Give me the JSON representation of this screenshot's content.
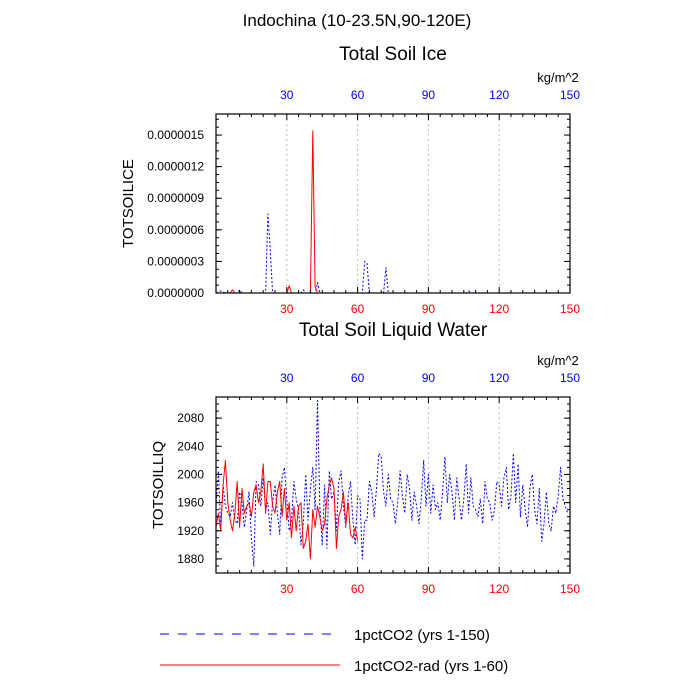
{
  "figure": {
    "title": "Indochina (10-23.5N,90-120E)",
    "legend": [
      {
        "label": "1pctCO2 (yrs 1-150)",
        "color": "#0000ff",
        "dash": "dashed"
      },
      {
        "label": "1pctCO2-rad (yrs 1-60)",
        "color": "#ff0000",
        "dash": "solid"
      }
    ]
  },
  "chart_data": [
    {
      "type": "line",
      "title": "Total Soil Ice",
      "ylabel": "TOTSOILICE",
      "units": "kg/m^2",
      "xlim": [
        0,
        150
      ],
      "ylim": [
        0,
        1.7e-06
      ],
      "grid": "vertical-dotted",
      "x_ticks": [
        30,
        60,
        90,
        120,
        150
      ],
      "y_ticks": [
        "0.0000000",
        "0.0000003",
        "0.0000006",
        "0.0000009",
        "0.0000012",
        "0.0000015"
      ],
      "y_tick_values": [
        0,
        3e-07,
        6e-07,
        9e-07,
        1.2e-06,
        1.5e-06
      ],
      "series": [
        {
          "name": "1pctCO2 (yrs 1-150)",
          "color": "#0000ff",
          "style": "dashed",
          "points": [
            [
              0,
              0
            ],
            [
              2,
              2e-08
            ],
            [
              4,
              0
            ],
            [
              9,
              0
            ],
            [
              10,
              3e-08
            ],
            [
              11,
              0
            ],
            [
              21,
              0
            ],
            [
              22,
              7.5e-07
            ],
            [
              23,
              4e-07
            ],
            [
              24,
              0
            ],
            [
              36,
              0
            ],
            [
              37,
              3e-08
            ],
            [
              38,
              0
            ],
            [
              42,
              0
            ],
            [
              43,
              1e-07
            ],
            [
              44,
              0
            ],
            [
              62,
              0
            ],
            [
              63,
              3e-07
            ],
            [
              64,
              2.8e-07
            ],
            [
              65,
              0
            ],
            [
              71,
              0
            ],
            [
              72,
              2.4e-07
            ],
            [
              73,
              0
            ],
            [
              106,
              0
            ],
            [
              107,
              2e-08
            ],
            [
              108,
              0
            ],
            [
              150,
              0
            ]
          ]
        },
        {
          "name": "1pctCO2-rad (yrs 1-60)",
          "color": "#ff0000",
          "style": "solid",
          "points": [
            [
              0,
              0
            ],
            [
              6,
              0
            ],
            [
              7,
              3e-08
            ],
            [
              8,
              0
            ],
            [
              30,
              0
            ],
            [
              31,
              7e-08
            ],
            [
              32,
              0
            ],
            [
              40,
              0
            ],
            [
              41,
              1.54e-06
            ],
            [
              42,
              6e-08
            ],
            [
              43,
              0
            ],
            [
              60,
              0
            ]
          ]
        }
      ]
    },
    {
      "type": "line",
      "title": "Total Soil Liquid Water",
      "ylabel": "TOTSOILLIQ",
      "units": "kg/m^2",
      "xlim": [
        0,
        150
      ],
      "ylim": [
        1860,
        2110
      ],
      "grid": "vertical-dotted",
      "x_ticks": [
        30,
        60,
        90,
        120,
        150
      ],
      "y_ticks": [
        "1880",
        "1920",
        "1960",
        "2000",
        "2040",
        "2080"
      ],
      "y_tick_values": [
        1880,
        1920,
        1960,
        2000,
        2040,
        2080
      ],
      "series": [
        {
          "name": "1pctCO2 (yrs 1-150)",
          "color": "#0000ff",
          "style": "dashed",
          "y": [
            1955,
            2005,
            1925,
            1985,
            1955,
            1945,
            1940,
            1960,
            1935,
            1930,
            1975,
            1960,
            1925,
            1950,
            1975,
            1910,
            1870,
            1990,
            1985,
            1955,
            1995,
            1950,
            1960,
            1915,
            1960,
            1985,
            1945,
            1915,
            1995,
            2010,
            1965,
            1920,
            1935,
            1990,
            1965,
            1950,
            1900,
            1930,
            2000,
            1935,
            1980,
            2010,
            1950,
            2105,
            1955,
            1900,
            1985,
            1895,
            2005,
            1965,
            1975,
            1920,
            1990,
            2005,
            1955,
            1925,
            1970,
            1990,
            1935,
            1900,
            1970,
            1965,
            1880,
            1935,
            1935,
            1990,
            1975,
            1940,
            1980,
            2030,
            2025,
            1975,
            1955,
            2000,
            1965,
            1960,
            1930,
            1960,
            2005,
            1970,
            1945,
            2000,
            1980,
            1935,
            1975,
            1955,
            1930,
            1965,
            2020,
            1955,
            2000,
            1945,
            1985,
            1950,
            1960,
            1935,
            1975,
            2025,
            1960,
            2000,
            1975,
            1935,
            1995,
            1965,
            1935,
            1965,
            2015,
            1945,
            1995,
            1955,
            1950,
            1940,
            1965,
            1930,
            1990,
            1965,
            1960,
            1935,
            1950,
            1990,
            1985,
            1955,
            1995,
            2010,
            1950,
            1970,
            2030,
            1960,
            2015,
            1940,
            1985,
            1950,
            1925,
            1980,
            2000,
            1950,
            1930,
            1980,
            1905,
            1930,
            1975,
            1930,
            1920,
            1955,
            1945,
            1970,
            2010,
            1965,
            1955,
            1945
          ]
        },
        {
          "name": "1pctCO2-rad (yrs 1-60)",
          "color": "#ff0000",
          "style": "solid",
          "y": [
            1925,
            1945,
            1920,
            1985,
            2020,
            1960,
            1935,
            1920,
            1945,
            1990,
            1925,
            1980,
            1945,
            1955,
            1960,
            1940,
            1975,
            1985,
            1960,
            1975,
            2015,
            1945,
            1990,
            1990,
            1955,
            1945,
            1975,
            1990,
            1940,
            1980,
            1935,
            1960,
            1910,
            1955,
            1920,
            1955,
            1960,
            1895,
            1905,
            1930,
            1880,
            1950,
            1925,
            1955,
            1940,
            1920,
            1930,
            1965,
            1985,
            1995,
            1980,
            1895,
            1940,
            1950,
            1975,
            1930,
            1960,
            1915,
            1910,
            1925,
            1905
          ]
        }
      ]
    }
  ]
}
